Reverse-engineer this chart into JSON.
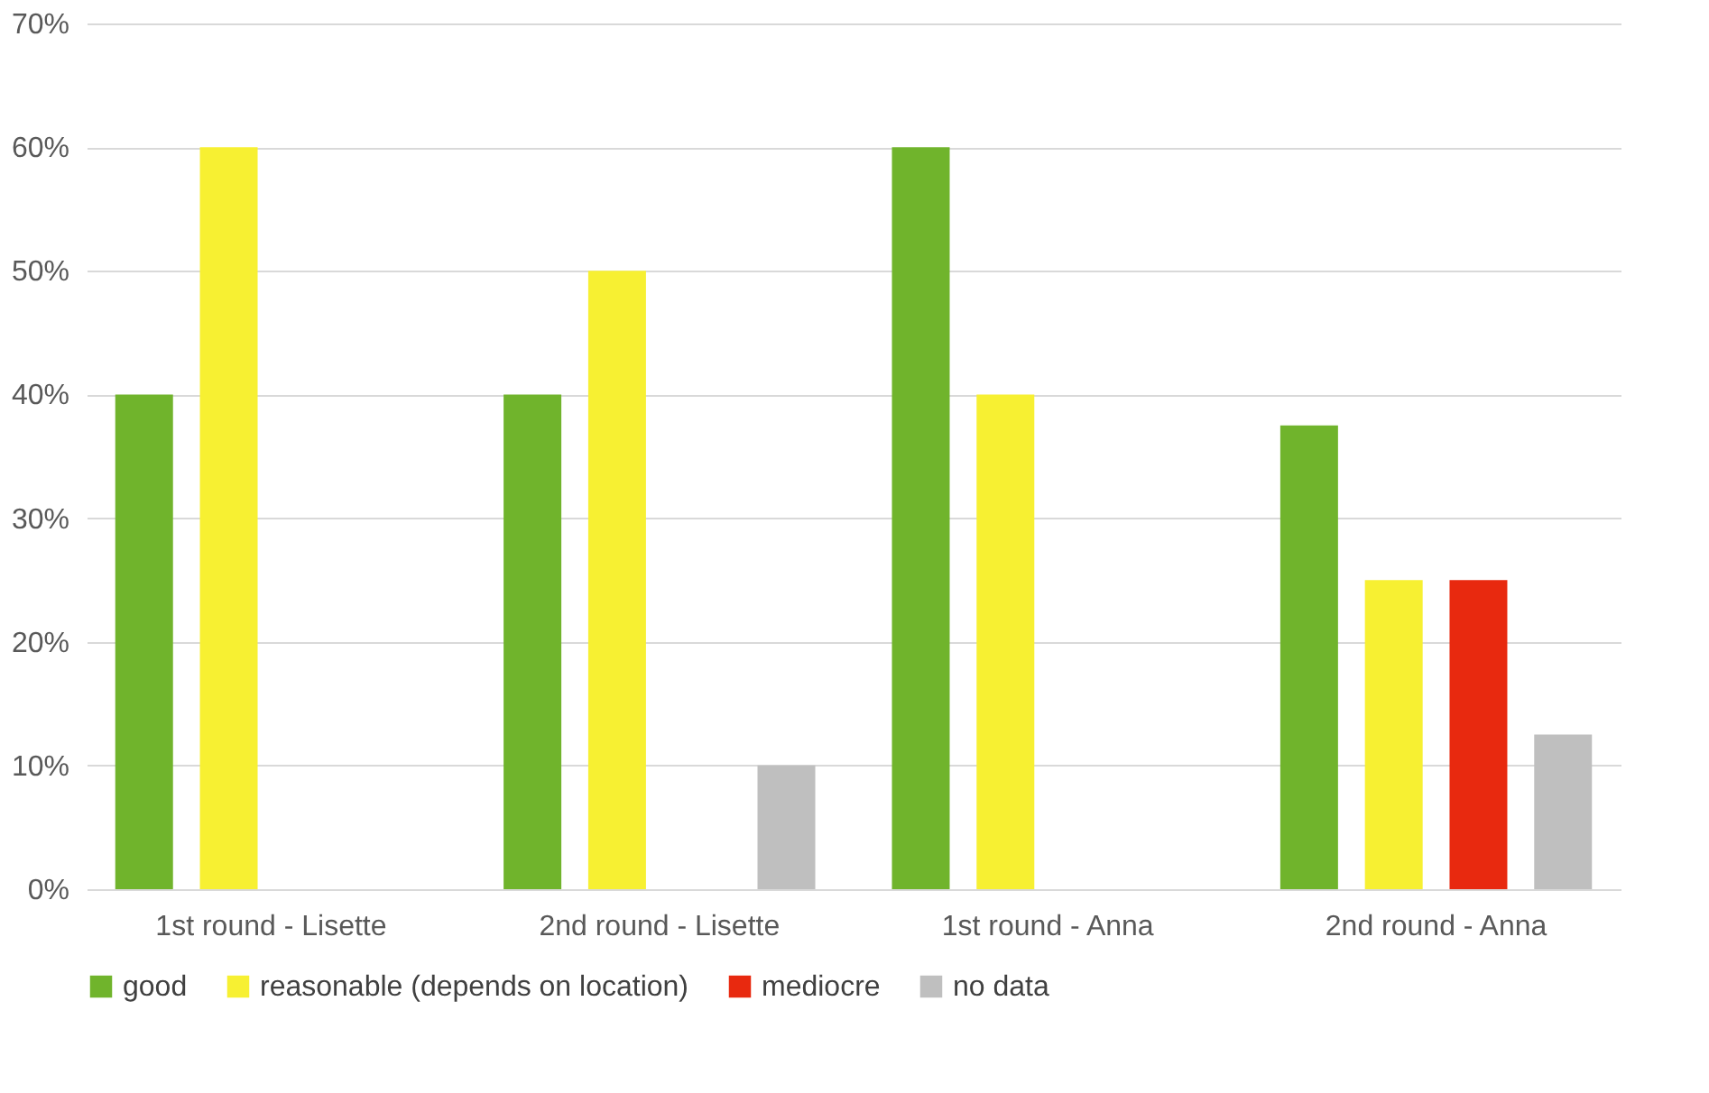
{
  "chart_data": {
    "type": "bar",
    "categories": [
      "1st round - Lisette",
      "2nd round - Lisette",
      "1st round - Anna",
      "2nd round - Anna"
    ],
    "series": [
      {
        "name": "good",
        "color": "#70b42c",
        "values": [
          40,
          40,
          60,
          37.5
        ]
      },
      {
        "name": "reasonable (depends on location)",
        "color": "#f7f032",
        "values": [
          60,
          50,
          40,
          25
        ]
      },
      {
        "name": "mediocre",
        "color": "#e8290f",
        "values": [
          null,
          null,
          null,
          25
        ]
      },
      {
        "name": "no data",
        "color": "#bfbfbf",
        "values": [
          null,
          10,
          null,
          12.5
        ]
      }
    ],
    "ylim": [
      0,
      70
    ],
    "yticks": [
      {
        "value": 0,
        "label": "0%"
      },
      {
        "value": 10,
        "label": "10%"
      },
      {
        "value": 20,
        "label": "20%"
      },
      {
        "value": 30,
        "label": "30%"
      },
      {
        "value": 40,
        "label": "40%"
      },
      {
        "value": 50,
        "label": "50%"
      },
      {
        "value": 60,
        "label": "60%"
      },
      {
        "value": 70,
        "label": "70%"
      }
    ],
    "grid": "y",
    "legend": "bottom"
  }
}
